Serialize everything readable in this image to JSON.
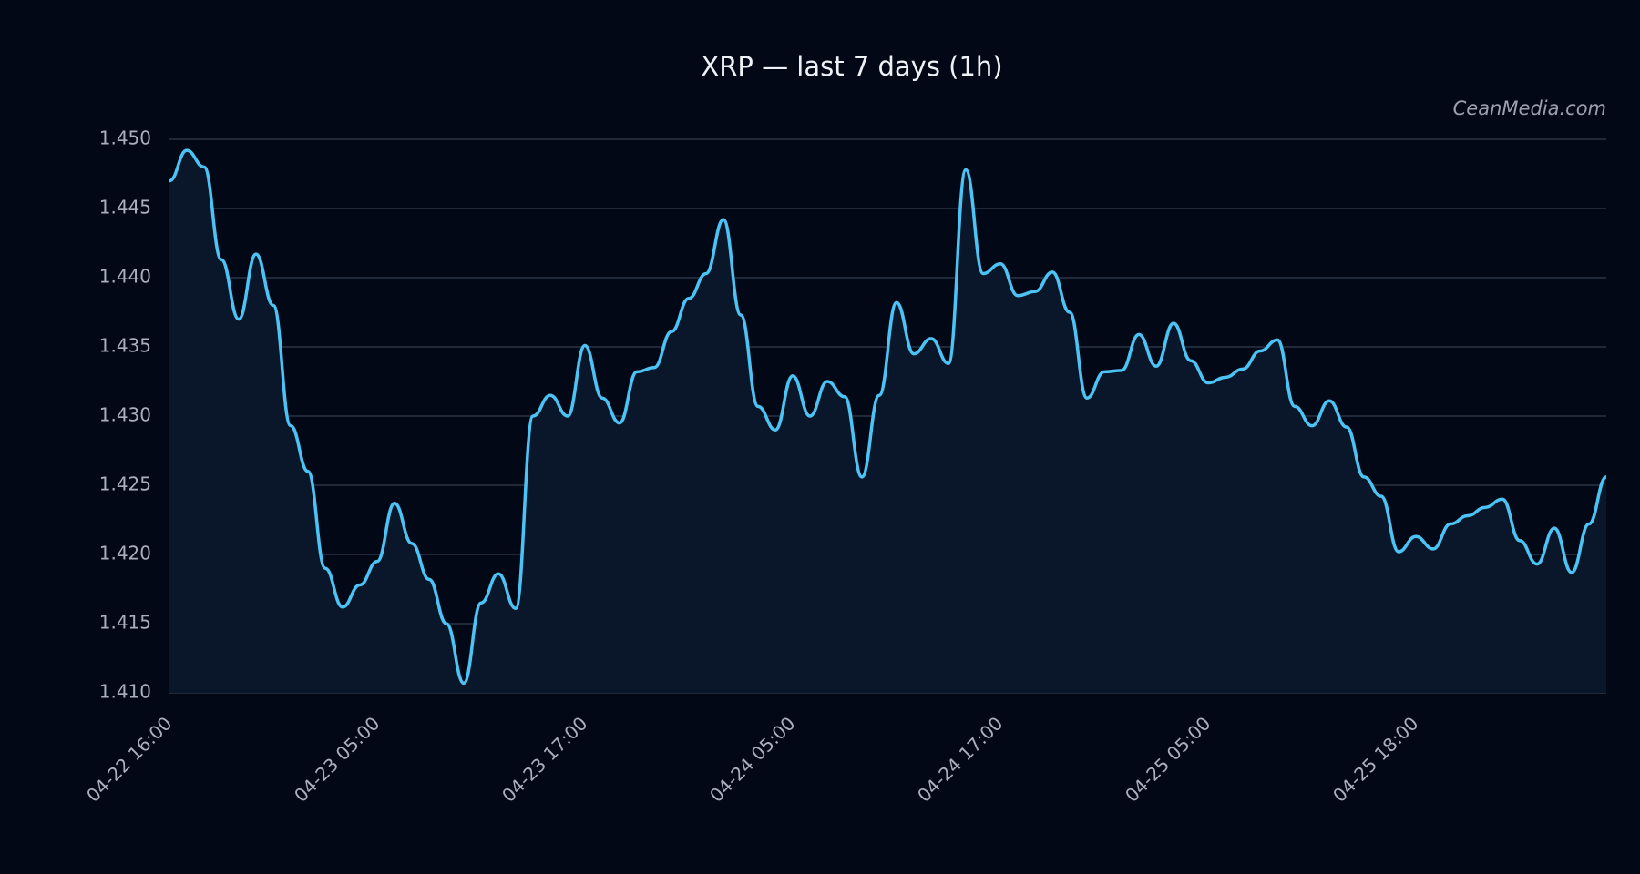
{
  "chart_data": {
    "type": "line",
    "title": "XRP — last 7 days (1h)",
    "watermark": "CeanMedia.com",
    "categories": [
      "04-22 16:00",
      null,
      null,
      null,
      null,
      null,
      null,
      null,
      null,
      null,
      null,
      null,
      "04-23 05:00",
      null,
      null,
      null,
      null,
      null,
      null,
      null,
      null,
      null,
      null,
      null,
      "04-23 17:00",
      null,
      null,
      null,
      null,
      null,
      null,
      null,
      null,
      null,
      null,
      null,
      "04-24 05:00",
      null,
      null,
      null,
      null,
      null,
      null,
      null,
      null,
      null,
      null,
      null,
      "04-24 17:00",
      null,
      null,
      null,
      null,
      null,
      null,
      null,
      null,
      null,
      null,
      null,
      "04-25 05:00",
      null,
      null,
      null,
      null,
      null,
      null,
      null,
      null,
      null,
      null,
      null,
      "04-25 18:00",
      null,
      null,
      null,
      null,
      null,
      null,
      null,
      null,
      null,
      null,
      null
    ],
    "series": [
      {
        "name": "XRP",
        "color": "#4cc3f5",
        "values": [
          1.447,
          1.4492,
          1.448,
          1.4413,
          1.437,
          1.4417,
          1.438,
          1.4293,
          1.426,
          1.419,
          1.4162,
          1.4178,
          1.4195,
          1.4237,
          1.4208,
          1.4182,
          1.415,
          1.4107,
          1.4165,
          1.4186,
          1.4161,
          1.43,
          1.4315,
          1.43,
          1.4351,
          1.4313,
          1.4295,
          1.4332,
          1.4335,
          1.4361,
          1.4385,
          1.4403,
          1.4442,
          1.4373,
          1.4307,
          1.429,
          1.4329,
          1.43,
          1.4325,
          1.4314,
          1.4256,
          1.4315,
          1.4382,
          1.4345,
          1.4356,
          1.4338,
          1.4478,
          1.4403,
          1.441,
          1.4387,
          1.439,
          1.4404,
          1.4375,
          1.4313,
          1.4332,
          1.4333,
          1.4359,
          1.4336,
          1.4367,
          1.434,
          1.4324,
          1.4328,
          1.4334,
          1.4347,
          1.4355,
          1.4307,
          1.4293,
          1.4311,
          1.4292,
          1.4256,
          1.4242,
          1.4202,
          1.4213,
          1.4204,
          1.4222,
          1.4228,
          1.4234,
          1.424,
          1.421,
          1.4193,
          1.4219,
          1.4187,
          1.4222,
          1.4256
        ]
      }
    ],
    "ylim": [
      1.41,
      1.45
    ],
    "yticks": [
      {
        "value": 1.41,
        "label": "1.410"
      },
      1.415,
      {
        "value": 1.42,
        "label": "1.420"
      },
      1.425,
      {
        "value": 1.43,
        "label": "1.430"
      },
      1.435,
      {
        "value": 1.44,
        "label": "1.440"
      },
      1.445,
      {
        "value": 1.45,
        "label": "1.450"
      }
    ],
    "grid": true,
    "fill": "#0a1629"
  }
}
